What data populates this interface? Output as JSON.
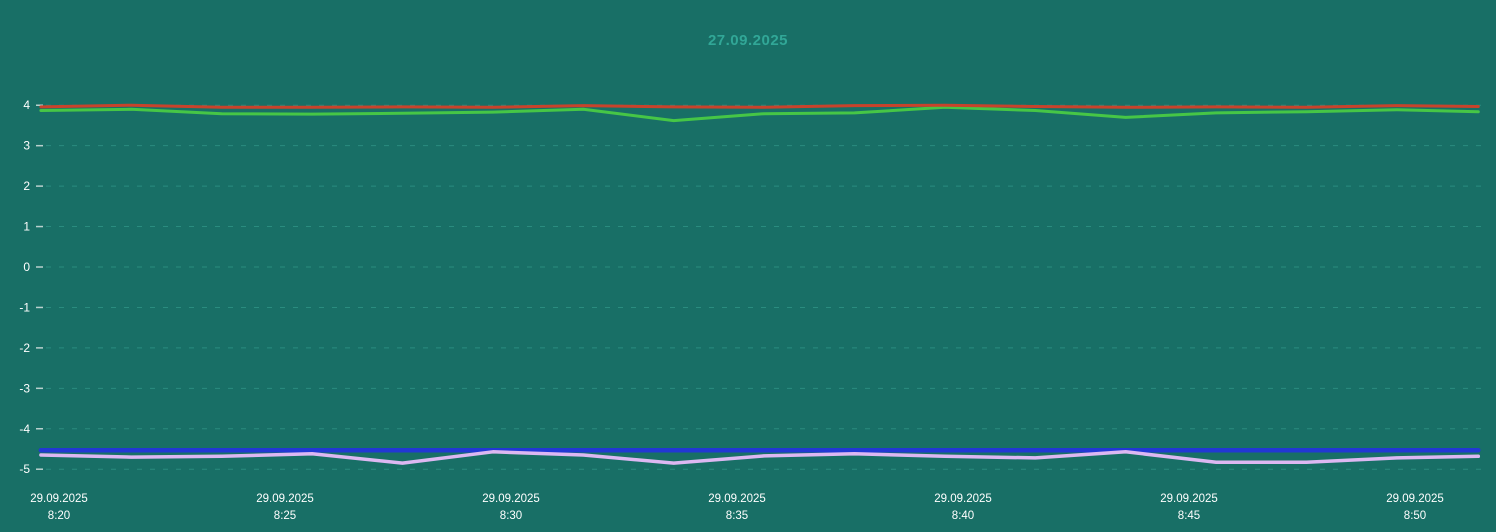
{
  "chart_data": {
    "type": "line",
    "title": "27.09.2025",
    "legend": "none",
    "grid": "dashed-horizontal",
    "x_axis": {
      "t_minutes_from_820": [
        -0.4,
        1.6,
        3.6,
        5.6,
        7.6,
        9.6,
        11.6,
        13.6,
        15.6,
        17.6,
        19.6,
        21.6,
        23.6,
        25.6,
        27.6,
        29.6,
        31.4
      ],
      "ticks": [
        {
          "date": "29.09.2025",
          "time": "8:20",
          "t": 0
        },
        {
          "date": "29.09.2025",
          "time": "8:25",
          "t": 5
        },
        {
          "date": "29.09.2025",
          "time": "8:30",
          "t": 10
        },
        {
          "date": "29.09.2025",
          "time": "8:35",
          "t": 15
        },
        {
          "date": "29.09.2025",
          "time": "8:40",
          "t": 20
        },
        {
          "date": "29.09.2025",
          "time": "8:45",
          "t": 25
        },
        {
          "date": "29.09.2025",
          "time": "8:50",
          "t": 30
        }
      ]
    },
    "y_axis": {
      "ticks": [
        4,
        3,
        2,
        1,
        0,
        -1,
        -2,
        -3,
        -4,
        -5
      ],
      "range": [
        -5,
        4
      ]
    },
    "series": [
      {
        "name": "green-line",
        "color": "#46c646",
        "stroke_width": 3,
        "values": [
          3.87,
          3.9,
          3.79,
          3.78,
          3.8,
          3.83,
          3.9,
          3.62,
          3.79,
          3.81,
          3.95,
          3.87,
          3.7,
          3.81,
          3.84,
          3.89,
          3.84
        ]
      },
      {
        "name": "red-line",
        "color": "#c8432b",
        "stroke_width": 3,
        "values": [
          3.96,
          4.0,
          3.95,
          3.95,
          3.96,
          3.95,
          3.99,
          3.96,
          3.95,
          3.99,
          4.0,
          3.97,
          3.95,
          3.96,
          3.95,
          3.99,
          3.97
        ]
      },
      {
        "name": "blue-line",
        "color": "#2238d4",
        "stroke_width": 4.5,
        "values": [
          -4.53,
          -4.53,
          -4.53,
          -4.53,
          -4.53,
          -4.53,
          -4.53,
          -4.53,
          -4.53,
          -4.53,
          -4.53,
          -4.53,
          -4.53,
          -4.53,
          -4.53,
          -4.53,
          -4.53
        ]
      },
      {
        "name": "purple-line",
        "color": "#dcb8f2",
        "stroke_width": 3.5,
        "values": [
          -4.65,
          -4.7,
          -4.68,
          -4.62,
          -4.85,
          -4.57,
          -4.65,
          -4.85,
          -4.67,
          -4.62,
          -4.68,
          -4.72,
          -4.57,
          -4.83,
          -4.83,
          -4.72,
          -4.68
        ]
      }
    ]
  },
  "colors": {
    "background": "#186f66",
    "title": "#31a797",
    "grid": "#37a090",
    "tick_mark": "#d7e3e1",
    "axis_text": "#ffffff"
  }
}
